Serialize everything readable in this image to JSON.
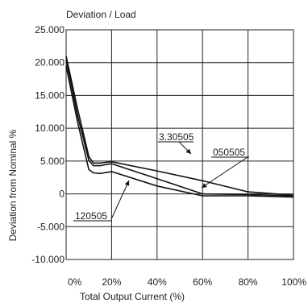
{
  "chart_data": {
    "type": "line",
    "title": "Deviation / Load",
    "xlabel": "Total Output Current (%)",
    "ylabel": "Deviation from Nominal %",
    "xlim": [
      0,
      100
    ],
    "ylim": [
      -10,
      25
    ],
    "x_ticks": [
      "0%",
      "20%",
      "40%",
      "60%",
      "80%",
      "100%"
    ],
    "x_tick_values": [
      0,
      20,
      40,
      60,
      80,
      100
    ],
    "y_ticks": [
      "25.000",
      "20.000",
      "15.000",
      "10.000",
      "5.000",
      "0",
      "-5.000",
      "-10.000"
    ],
    "y_tick_values": [
      25,
      20,
      15,
      10,
      5,
      0,
      -5,
      -10
    ],
    "grid": true,
    "series": [
      {
        "name": "3.30505",
        "x": [
          0,
          5,
          10,
          12,
          15,
          20,
          40,
          60,
          80,
          100
        ],
        "y": [
          21,
          13,
          5.7,
          4.7,
          4.7,
          4.9,
          3.5,
          2,
          0.3,
          -0.2
        ]
      },
      {
        "name": "050505",
        "x": [
          0,
          5,
          10,
          12,
          15,
          20,
          40,
          60,
          80,
          100
        ],
        "y": [
          20.5,
          12,
          5.1,
          4.3,
          4.3,
          4.6,
          2.3,
          0,
          -0.1,
          -0.3
        ]
      },
      {
        "name": "120505",
        "x": [
          0,
          5,
          10,
          12,
          15,
          20,
          40,
          60,
          80,
          100
        ],
        "y": [
          19.5,
          11,
          3.7,
          3.2,
          3.1,
          3.4,
          1.2,
          -0.3,
          -0.3,
          -0.5
        ]
      }
    ]
  }
}
